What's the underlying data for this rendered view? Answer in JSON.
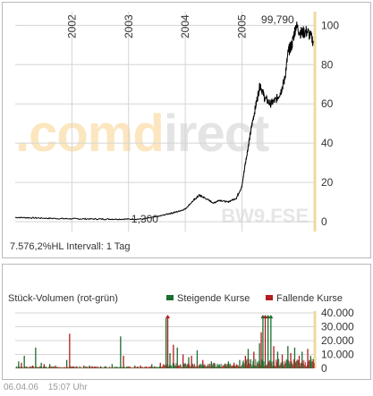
{
  "chart_data": [
    {
      "type": "line",
      "title": "",
      "x_ticks": [
        "2002",
        "2003",
        "2004",
        "2005"
      ],
      "y_ticks": [
        "0",
        "20",
        "40",
        "60",
        "80",
        "100"
      ],
      "ylim": [
        -5,
        107
      ],
      "grid": true,
      "series": [
        {
          "values": [
            {
              "x": 2001.0,
              "y": 2.2
            },
            {
              "x": 2001.25,
              "y": 2.0
            },
            {
              "x": 2001.5,
              "y": 1.8
            },
            {
              "x": 2001.75,
              "y": 1.6
            },
            {
              "x": 2002.0,
              "y": 1.5
            },
            {
              "x": 2002.25,
              "y": 1.4
            },
            {
              "x": 2002.5,
              "y": 1.35
            },
            {
              "x": 2002.75,
              "y": 1.3
            },
            {
              "x": 2003.0,
              "y": 1.3
            },
            {
              "x": 2003.25,
              "y": 1.35
            },
            {
              "x": 2003.5,
              "y": 2.5
            },
            {
              "x": 2003.7,
              "y": 4.0
            },
            {
              "x": 2003.85,
              "y": 5.0
            },
            {
              "x": 2004.0,
              "y": 6.5
            },
            {
              "x": 2004.15,
              "y": 11.0
            },
            {
              "x": 2004.25,
              "y": 13.5
            },
            {
              "x": 2004.35,
              "y": 12.0
            },
            {
              "x": 2004.5,
              "y": 9.5
            },
            {
              "x": 2004.6,
              "y": 11.0
            },
            {
              "x": 2004.75,
              "y": 10.0
            },
            {
              "x": 2004.9,
              "y": 12.0
            },
            {
              "x": 2005.0,
              "y": 18.0
            },
            {
              "x": 2005.05,
              "y": 28.0
            },
            {
              "x": 2005.12,
              "y": 40.0
            },
            {
              "x": 2005.18,
              "y": 50.0
            },
            {
              "x": 2005.25,
              "y": 60.0
            },
            {
              "x": 2005.32,
              "y": 70.0
            },
            {
              "x": 2005.4,
              "y": 63.0
            },
            {
              "x": 2005.5,
              "y": 60.0
            },
            {
              "x": 2005.6,
              "y": 62.0
            },
            {
              "x": 2005.68,
              "y": 66.0
            },
            {
              "x": 2005.75,
              "y": 72.0
            },
            {
              "x": 2005.82,
              "y": 87.0
            },
            {
              "x": 2005.88,
              "y": 90.0
            },
            {
              "x": 2005.95,
              "y": 99.79
            },
            {
              "x": 2006.05,
              "y": 96.0
            },
            {
              "x": 2006.15,
              "y": 97.0
            },
            {
              "x": 2006.26,
              "y": 92.0
            }
          ]
        }
      ],
      "annotations": [
        {
          "x": 2003.05,
          "y": 1.3,
          "text": "1,300"
        },
        {
          "x": 2005.95,
          "y": 99.79,
          "text": "99,790"
        }
      ]
    },
    {
      "type": "bar",
      "title": "Stück-Volumen (rot-grün)",
      "legend": [
        "Steigende Kurse",
        "Fallende Kurse"
      ],
      "legend_placement": "top-right",
      "y_ticks": [
        "0",
        "10.000",
        "20.000",
        "30.000",
        "40.000"
      ],
      "ylim": [
        0,
        40000
      ],
      "x_range": [
        2001.0,
        2006.27
      ],
      "series": [
        {
          "name": "Steigende Kurse",
          "values": [
            {
              "x": 2001.05,
              "y": 5000
            },
            {
              "x": 2001.15,
              "y": 9000
            },
            {
              "x": 2001.35,
              "y": 15000
            },
            {
              "x": 2001.45,
              "y": 4000
            },
            {
              "x": 2001.6,
              "y": 3000
            },
            {
              "x": 2001.9,
              "y": 6000
            },
            {
              "x": 2002.3,
              "y": 2000
            },
            {
              "x": 2002.7,
              "y": 3000
            },
            {
              "x": 2002.85,
              "y": 23000
            },
            {
              "x": 2003.1,
              "y": 2000
            },
            {
              "x": 2003.4,
              "y": 3000
            },
            {
              "x": 2003.65,
              "y": 36000
            },
            {
              "x": 2003.72,
              "y": 11000
            },
            {
              "x": 2003.85,
              "y": 15000
            },
            {
              "x": 2004.05,
              "y": 8000
            },
            {
              "x": 2004.2,
              "y": 13000
            },
            {
              "x": 2004.45,
              "y": 5000
            },
            {
              "x": 2004.6,
              "y": 3000
            },
            {
              "x": 2004.75,
              "y": 5000
            },
            {
              "x": 2004.95,
              "y": 6000
            },
            {
              "x": 2005.1,
              "y": 14000
            },
            {
              "x": 2005.3,
              "y": 18000
            },
            {
              "x": 2005.36,
              "y": 38000
            },
            {
              "x": 2005.45,
              "y": 38000
            },
            {
              "x": 2005.5,
              "y": 38000
            },
            {
              "x": 2005.62,
              "y": 12000
            },
            {
              "x": 2005.8,
              "y": 16000
            },
            {
              "x": 2005.92,
              "y": 15000
            },
            {
              "x": 2006.05,
              "y": 12000
            },
            {
              "x": 2006.2,
              "y": 9000
            }
          ]
        },
        {
          "name": "Fallende Kurse",
          "values": [
            {
              "x": 2001.1,
              "y": 4000
            },
            {
              "x": 2001.3,
              "y": 2000
            },
            {
              "x": 2001.5,
              "y": 3000
            },
            {
              "x": 2001.7,
              "y": 2000
            },
            {
              "x": 2001.95,
              "y": 25000
            },
            {
              "x": 2002.2,
              "y": 2000
            },
            {
              "x": 2002.5,
              "y": 1500
            },
            {
              "x": 2002.9,
              "y": 9000
            },
            {
              "x": 2003.2,
              "y": 2000
            },
            {
              "x": 2003.55,
              "y": 4000
            },
            {
              "x": 2003.68,
              "y": 38000
            },
            {
              "x": 2003.78,
              "y": 17000
            },
            {
              "x": 2003.95,
              "y": 10000
            },
            {
              "x": 2004.1,
              "y": 9000
            },
            {
              "x": 2004.3,
              "y": 6000
            },
            {
              "x": 2004.5,
              "y": 4000
            },
            {
              "x": 2004.7,
              "y": 3000
            },
            {
              "x": 2004.85,
              "y": 4000
            },
            {
              "x": 2005.05,
              "y": 9000
            },
            {
              "x": 2005.2,
              "y": 12000
            },
            {
              "x": 2005.33,
              "y": 26000
            },
            {
              "x": 2005.4,
              "y": 38000
            },
            {
              "x": 2005.55,
              "y": 16000
            },
            {
              "x": 2005.7,
              "y": 10000
            },
            {
              "x": 2005.85,
              "y": 11000
            },
            {
              "x": 2006.0,
              "y": 9000
            },
            {
              "x": 2006.15,
              "y": 14000
            }
          ]
        }
      ]
    }
  ],
  "price_footer": "7.576,2%HL Intervall: 1 Tag",
  "watermark": {
    "logo": ".comdirect",
    "code": "BW9.FSE"
  },
  "footer": {
    "date": "06.04.06",
    "time": "15:07 Uhr"
  },
  "colors": {
    "rising": "#1a6e2e",
    "falling": "#b21d1d",
    "line": "#000000",
    "grid": "#d5d5d5",
    "axis": "#f0d9a0",
    "watermark_orange": "#fbe6bf",
    "watermark_gray": "#e4e4e4"
  }
}
